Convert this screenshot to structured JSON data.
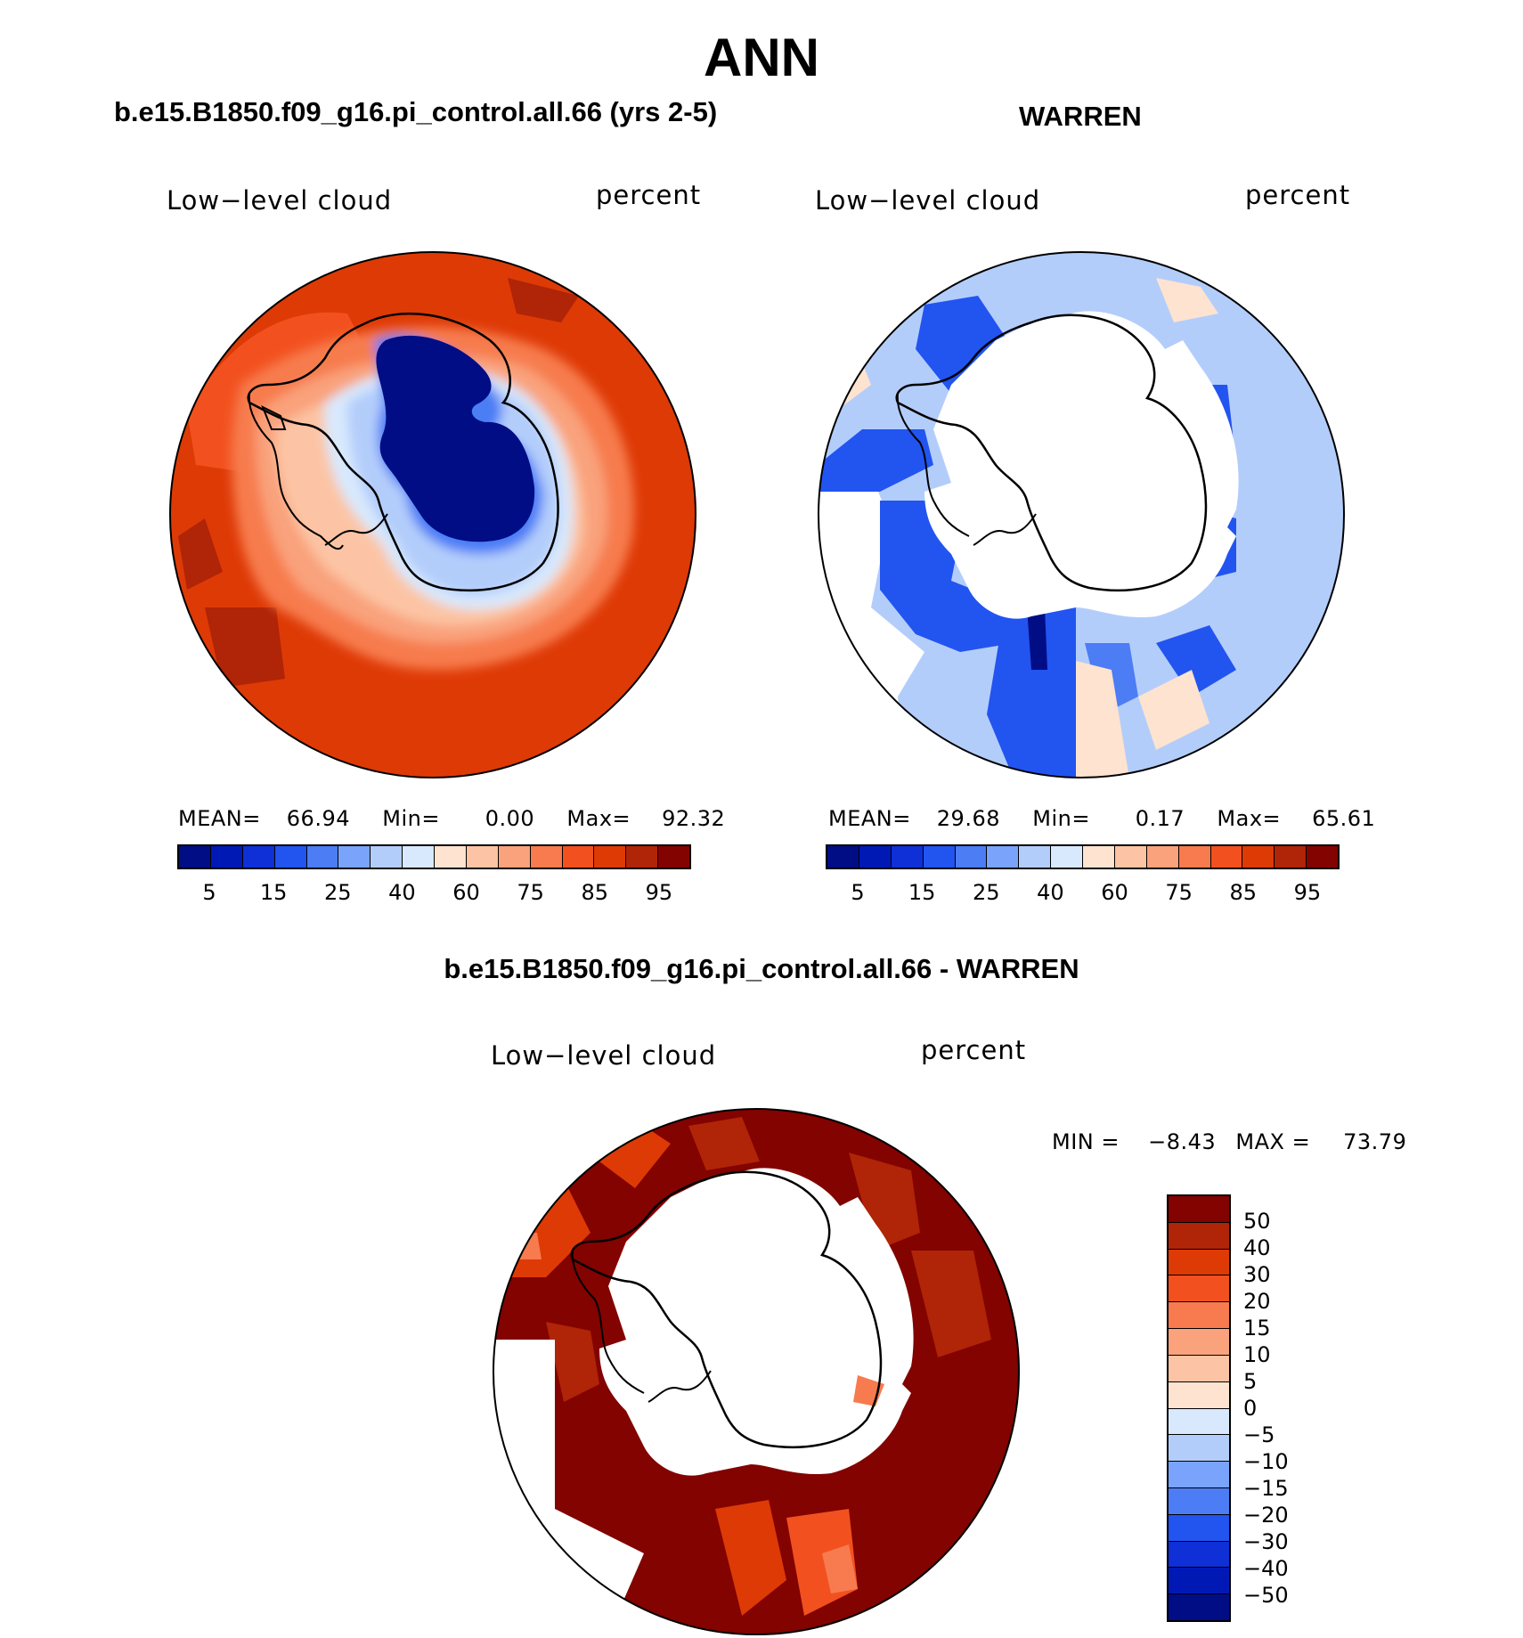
{
  "title": "ANN",
  "panel_a": {
    "case": "b.e15.B1850.f09_g16.pi_control.all.66 (yrs 2-5)",
    "variable": "Low−level cloud",
    "units": "percent",
    "stats": {
      "mean_label": "MEAN=",
      "mean": "66.94",
      "min_label": "Min=",
      "min": "0.00",
      "max_label": "Max=",
      "max": "92.32"
    }
  },
  "panel_b": {
    "case": "WARREN",
    "variable": "Low−level cloud",
    "units": "percent",
    "stats": {
      "mean_label": "MEAN=",
      "mean": "29.68",
      "min_label": "Min=",
      "min": "0.17",
      "max_label": "Max=",
      "max": "65.61"
    }
  },
  "panel_c": {
    "case": "b.e15.B1850.f09_g16.pi_control.all.66 - WARREN",
    "variable": "Low−level cloud",
    "units": "percent",
    "stats": {
      "min_label": "MIN =",
      "min": "−8.43",
      "max_label": "MAX =",
      "max": "73.79"
    }
  },
  "colorbar_abs": {
    "colors": [
      "#000d85",
      "#0019b5",
      "#0e30d6",
      "#2254f0",
      "#4c7df5",
      "#7aa4fb",
      "#b3cdfb",
      "#d8e9fd",
      "#fde3d0",
      "#fcc4a4",
      "#f9a27c",
      "#f77b4e",
      "#f2511f",
      "#de3a06",
      "#b02407",
      "#820300"
    ],
    "tick_labels": [
      "5",
      "15",
      "25",
      "40",
      "60",
      "75",
      "85",
      "95"
    ]
  },
  "colorbar_diff": {
    "colors": [
      "#820300",
      "#b02407",
      "#de3a06",
      "#f2511f",
      "#f77b4e",
      "#f9a27c",
      "#fcc4a4",
      "#fde3d0",
      "#d8e9fd",
      "#b3cdfb",
      "#7aa4fb",
      "#4c7df5",
      "#2254f0",
      "#0e30d6",
      "#0019b5",
      "#000d85"
    ],
    "tick_labels": [
      "50",
      "40",
      "30",
      "20",
      "15",
      "10",
      "5",
      "0",
      "−5",
      "−10",
      "−15",
      "−20",
      "−30",
      "−40",
      "−50"
    ]
  }
}
